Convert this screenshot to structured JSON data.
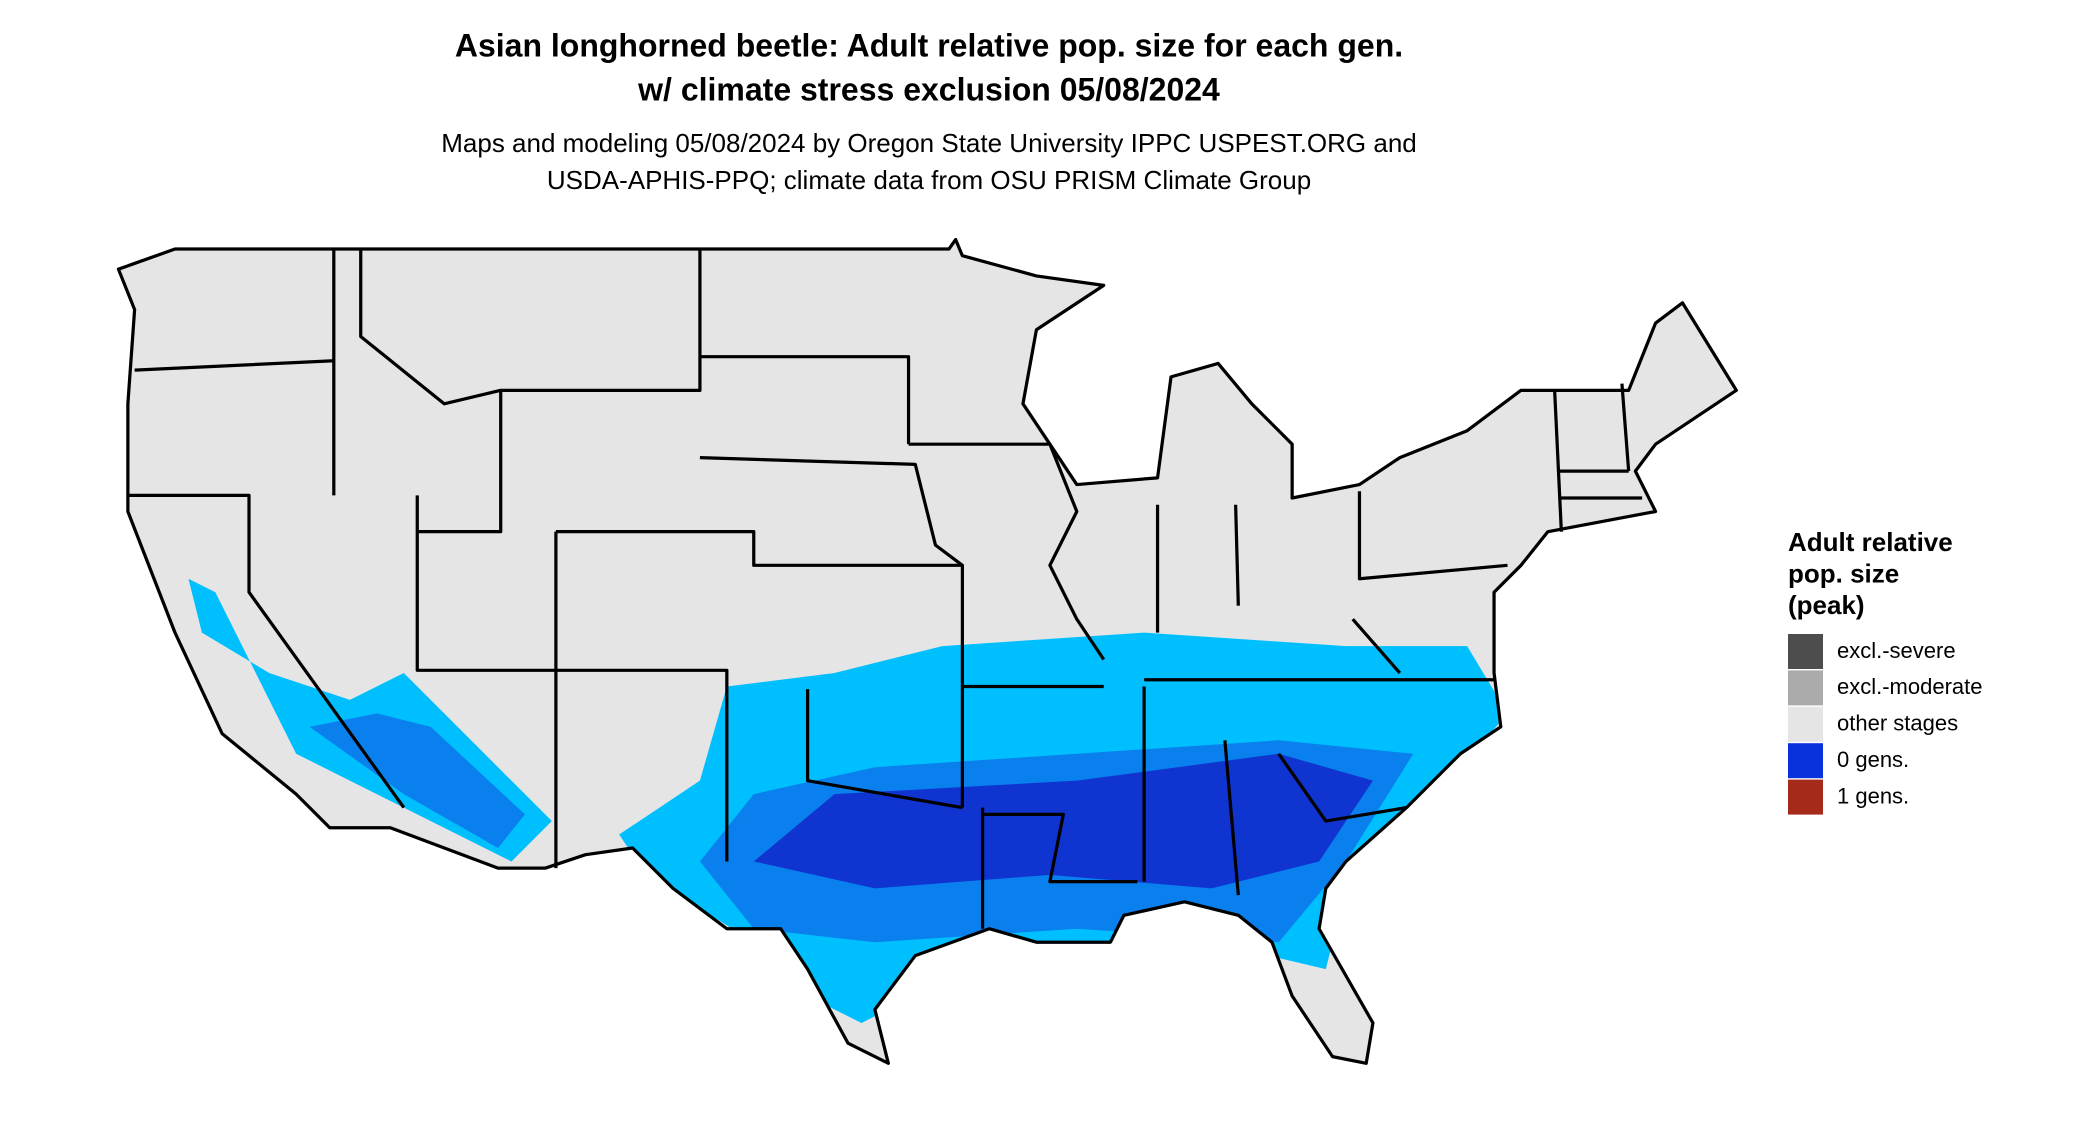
{
  "title": [
    "Asian longhorned beetle: Adult relative pop. size for each gen.",
    "w/ climate stress exclusion 05/08/2024"
  ],
  "subtitle": [
    "Maps and modeling 05/08/2024 by Oregon State University IPPC USPEST.ORG and",
    "USDA-APHIS-PPQ; climate data from OSU PRISM Climate Group"
  ],
  "legend": {
    "title": [
      "Adult relative",
      "pop. size",
      "(peak)"
    ],
    "items": [
      {
        "label": "excl.-severe",
        "color": "#4d4d4d"
      },
      {
        "label": "excl.-moderate",
        "color": "#ababab"
      },
      {
        "label": "other stages",
        "color": "#e5e5e5"
      },
      {
        "label": "0 gens.",
        "color": "#0a32dc"
      },
      {
        "label": "1 gens.",
        "color": "#a52a1a"
      }
    ]
  }
}
